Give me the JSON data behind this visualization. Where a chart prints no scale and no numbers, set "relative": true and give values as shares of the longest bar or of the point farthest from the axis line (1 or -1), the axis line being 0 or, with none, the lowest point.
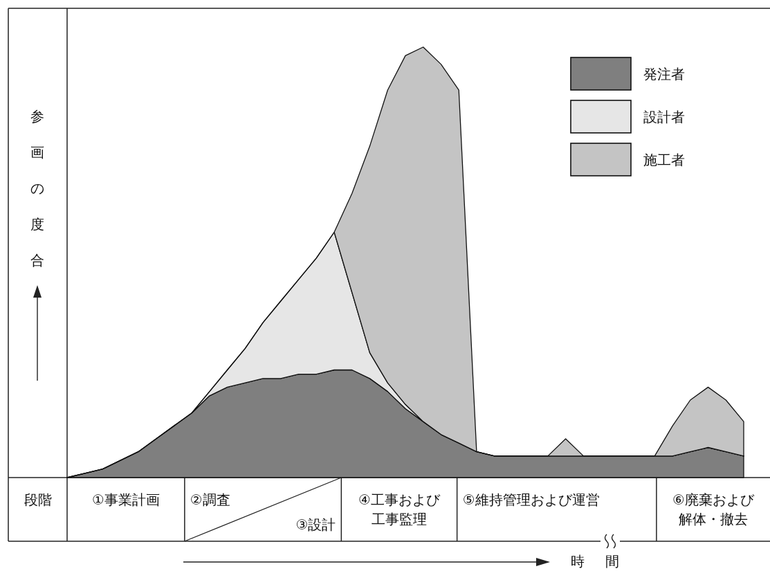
{
  "chart_data": {
    "type": "area",
    "stacked": true,
    "relative": true,
    "legend": "top right",
    "xlabel": "時間",
    "ylabel": "参画の度合",
    "categories": [
      null,
      null,
      null,
      null,
      null,
      null,
      null,
      null,
      null,
      null,
      null,
      null,
      null,
      null,
      null,
      null,
      null,
      null,
      null,
      null,
      null,
      null,
      null,
      null,
      null,
      null,
      null,
      null,
      null,
      null,
      null,
      null,
      null,
      null,
      null,
      null,
      null,
      null,
      null
    ],
    "series": [
      {
        "name": "発注者",
        "color": "#7f7f7f",
        "values": [
          0,
          0.01,
          0.02,
          0.04,
          0.06,
          0.09,
          0.12,
          0.15,
          0.19,
          0.21,
          0.22,
          0.23,
          0.23,
          0.24,
          0.24,
          0.25,
          0.25,
          0.23,
          0.2,
          0.16,
          0.13,
          0.1,
          0.08,
          0.06,
          0.05,
          0.05,
          0.05,
          0.05,
          0.05,
          0.05,
          0.05,
          0.05,
          0.05,
          0.05,
          0.05,
          0.06,
          0.07,
          0.06,
          0.05
        ]
      },
      {
        "name": "設計者",
        "color": "#e6e6e6",
        "values": [
          0,
          0,
          0,
          0,
          0,
          0,
          0,
          0,
          0.01,
          0.04,
          0.08,
          0.13,
          0.18,
          0.22,
          0.27,
          0.32,
          0.18,
          0.06,
          0.02,
          0.01,
          0,
          0,
          0,
          0,
          0,
          0,
          0,
          0,
          0,
          0,
          0,
          0,
          0,
          0,
          0,
          0,
          0,
          0,
          0
        ]
      },
      {
        "name": "施工者",
        "color": "#c4c4c4",
        "values": [
          0,
          0,
          0,
          0,
          0,
          0,
          0,
          0,
          0,
          0,
          0,
          0,
          0,
          0,
          0,
          0,
          0.23,
          0.48,
          0.68,
          0.81,
          0.87,
          0.86,
          0.82,
          0,
          0,
          0,
          0,
          0,
          0.04,
          0,
          0,
          0,
          0,
          0,
          0.07,
          0.12,
          0.14,
          0.12,
          0.08
        ]
      }
    ],
    "annotations": [
      "段階",
      "①事業計画",
      "②調査",
      "③設計",
      "④工事および",
      "工事監理",
      "⑤維持管理および運営",
      "⑥廃棄および",
      "解体・撤去"
    ]
  }
}
